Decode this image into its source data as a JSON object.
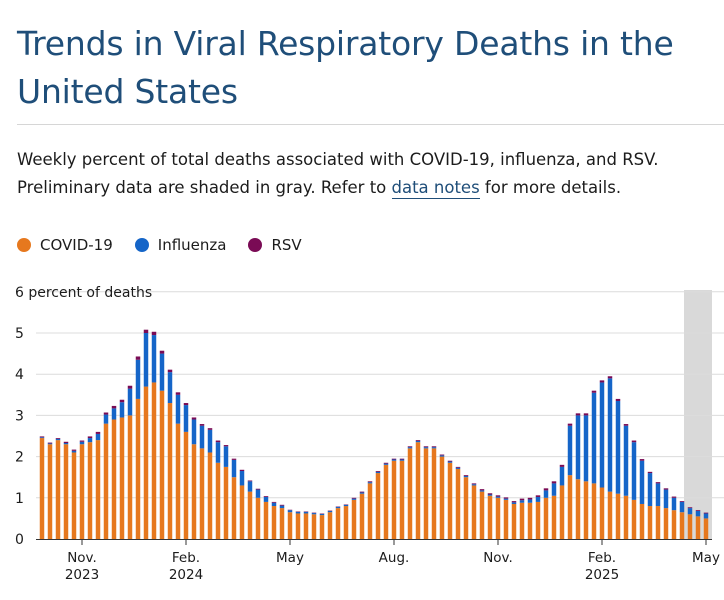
{
  "title": "Trends in Viral Respiratory Deaths in the United States",
  "description": {
    "before_link": "Weekly percent of total deaths associated with COVID-19, influenza, and RSV. Preliminary data are shaded in gray. Refer to ",
    "link_text": "data notes",
    "after_link": " for more details."
  },
  "legend": [
    {
      "label": "COVID-19",
      "color": "#e6781e"
    },
    {
      "label": "Influenza",
      "color": "#1565c8"
    },
    {
      "label": "RSV",
      "color": "#7a0b55"
    }
  ],
  "chart_data": {
    "type": "bar",
    "stacked": true,
    "ylabel": "6 percent of deaths",
    "ylim": [
      0,
      6
    ],
    "yticks": [
      "0",
      "1",
      "2",
      "3",
      "4",
      "5",
      "6 percent of deaths"
    ],
    "grid": true,
    "legend_position": "top-left",
    "preliminary_shading": "gray band over most recent weeks",
    "xtick_labels": [
      {
        "index": 5,
        "line1": "Nov.",
        "line2": "2023"
      },
      {
        "index": 18,
        "line1": "Feb.",
        "line2": "2024"
      },
      {
        "index": 31,
        "line1": "May",
        "line2": ""
      },
      {
        "index": 44,
        "line1": "Aug.",
        "line2": ""
      },
      {
        "index": 57,
        "line1": "Nov.",
        "line2": ""
      },
      {
        "index": 70,
        "line1": "Feb.",
        "line2": "2025"
      },
      {
        "index": 83,
        "line1": "May",
        "line2": ""
      }
    ],
    "preliminary_start_index": 81,
    "series": [
      {
        "name": "COVID-19",
        "color": "#e6781e",
        "values": [
          2.45,
          2.3,
          2.4,
          2.3,
          2.1,
          2.3,
          2.35,
          2.4,
          2.8,
          2.9,
          2.95,
          3.0,
          3.4,
          3.7,
          3.8,
          3.6,
          3.3,
          2.8,
          2.6,
          2.3,
          2.2,
          2.1,
          1.85,
          1.75,
          1.5,
          1.3,
          1.15,
          1.0,
          0.9,
          0.8,
          0.75,
          0.65,
          0.62,
          0.62,
          0.6,
          0.58,
          0.65,
          0.75,
          0.8,
          0.95,
          1.1,
          1.35,
          1.6,
          1.8,
          1.9,
          1.9,
          2.2,
          2.35,
          2.2,
          2.2,
          2.0,
          1.85,
          1.7,
          1.5,
          1.3,
          1.15,
          1.05,
          1.0,
          0.95,
          0.85,
          0.88,
          0.88,
          0.9,
          1.0,
          1.05,
          1.3,
          1.55,
          1.45,
          1.4,
          1.35,
          1.25,
          1.15,
          1.1,
          1.05,
          0.95,
          0.85,
          0.8,
          0.8,
          0.75,
          0.7,
          0.65,
          0.6,
          0.55,
          0.5
        ]
      },
      {
        "name": "Influenza",
        "color": "#1565c8",
        "values": [
          0.02,
          0.02,
          0.03,
          0.03,
          0.04,
          0.06,
          0.1,
          0.15,
          0.22,
          0.27,
          0.37,
          0.65,
          0.95,
          1.3,
          1.15,
          0.9,
          0.75,
          0.7,
          0.65,
          0.6,
          0.55,
          0.55,
          0.5,
          0.5,
          0.42,
          0.35,
          0.25,
          0.2,
          0.12,
          0.08,
          0.06,
          0.05,
          0.04,
          0.04,
          0.03,
          0.03,
          0.03,
          0.03,
          0.03,
          0.03,
          0.03,
          0.03,
          0.03,
          0.03,
          0.03,
          0.03,
          0.03,
          0.03,
          0.03,
          0.03,
          0.03,
          0.03,
          0.03,
          0.03,
          0.03,
          0.03,
          0.03,
          0.03,
          0.03,
          0.04,
          0.06,
          0.08,
          0.12,
          0.18,
          0.3,
          0.45,
          1.2,
          1.55,
          1.6,
          2.2,
          2.55,
          2.75,
          2.25,
          1.7,
          1.4,
          1.05,
          0.8,
          0.55,
          0.45,
          0.3,
          0.25,
          0.15,
          0.13,
          0.12
        ]
      },
      {
        "name": "RSV",
        "color": "#7a0b55",
        "values": [
          0.02,
          0.02,
          0.02,
          0.03,
          0.03,
          0.03,
          0.04,
          0.05,
          0.05,
          0.06,
          0.06,
          0.07,
          0.08,
          0.08,
          0.08,
          0.07,
          0.06,
          0.06,
          0.05,
          0.05,
          0.04,
          0.04,
          0.04,
          0.03,
          0.03,
          0.03,
          0.02,
          0.02,
          0.02,
          0.02,
          0.02,
          0.01,
          0.01,
          0.01,
          0.01,
          0.01,
          0.01,
          0.01,
          0.01,
          0.02,
          0.02,
          0.02,
          0.02,
          0.02,
          0.02,
          0.02,
          0.02,
          0.02,
          0.02,
          0.02,
          0.02,
          0.02,
          0.02,
          0.02,
          0.02,
          0.03,
          0.03,
          0.03,
          0.03,
          0.03,
          0.04,
          0.04,
          0.04,
          0.05,
          0.05,
          0.05,
          0.05,
          0.05,
          0.05,
          0.05,
          0.05,
          0.05,
          0.05,
          0.04,
          0.04,
          0.04,
          0.03,
          0.03,
          0.03,
          0.03,
          0.02,
          0.02,
          0.02,
          0.02
        ]
      }
    ]
  }
}
